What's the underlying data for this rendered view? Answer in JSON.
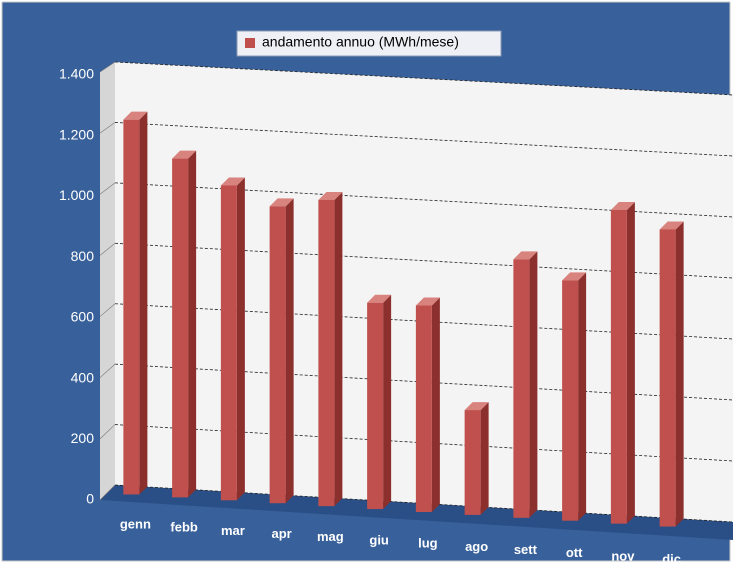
{
  "chart_data": {
    "type": "bar3d",
    "legend": "andamento annuo (MWh/mese)",
    "series": [
      {
        "name": "andamento annuo (MWh/mese)",
        "color": "#c0504d",
        "values": [
          1240,
          1120,
          1040,
          980,
          1010,
          680,
          680,
          345,
          850,
          790,
          1030,
          975
        ]
      }
    ],
    "categories": [
      "genn",
      "febb",
      "mar",
      "apr",
      "mag",
      "giu",
      "lug",
      "ago",
      "sett",
      "ott",
      "nov",
      "dic"
    ],
    "ylim": [
      0,
      1400
    ],
    "yticks": [
      0,
      200,
      400,
      600,
      800,
      {
        "value": 1000,
        "label": "1.000"
      },
      {
        "value": 1200,
        "label": "1.200"
      },
      {
        "value": 1400,
        "label": "1.400"
      }
    ],
    "grid": true,
    "legend_position": "top"
  }
}
